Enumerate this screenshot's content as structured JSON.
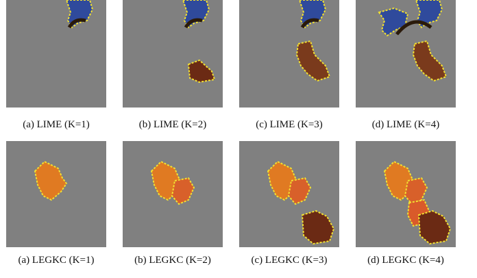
{
  "figure": {
    "rows": [
      {
        "captions": [
          "(a) LIME (K=1)",
          "(b) LIME (K=2)",
          "(c) LIME (K=3)",
          "(d) LIME (K=4)"
        ]
      },
      {
        "captions": [
          "(a) LEGKC (K=1)",
          "(b) LEGKC (K=2)",
          "(c) LEGKC (K=3)",
          "(d) LEGKC (K=4)"
        ]
      }
    ]
  }
}
